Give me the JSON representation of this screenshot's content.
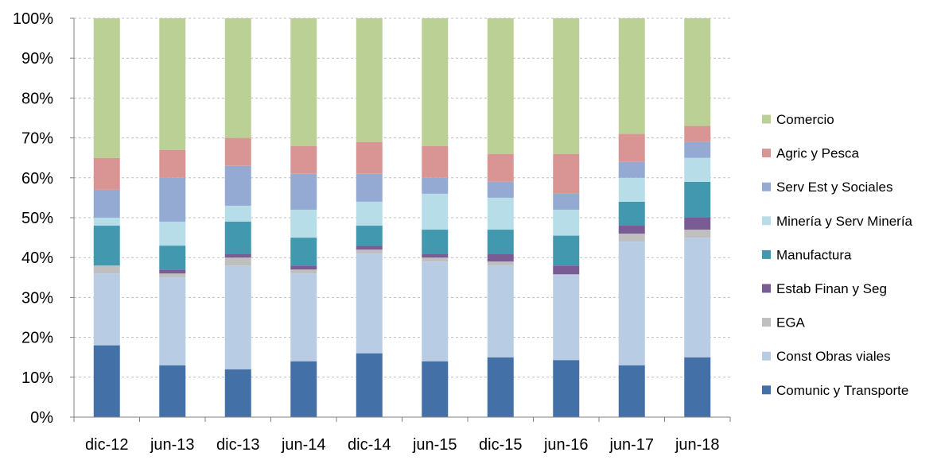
{
  "chart_data": {
    "type": "bar",
    "stacked": true,
    "normalized": true,
    "categories": [
      "dic-12",
      "jun-13",
      "dic-13",
      "jun-14",
      "dic-14",
      "jun-15",
      "dic-15",
      "jun-16",
      "jun-17",
      "jun-18"
    ],
    "ylim": [
      0,
      100
    ],
    "y_ticks": [
      "0%",
      "10%",
      "20%",
      "30%",
      "40%",
      "50%",
      "60%",
      "70%",
      "80%",
      "90%",
      "100%"
    ],
    "grid": true,
    "legend_position": "right",
    "series": [
      {
        "name": "Comunic y Transporte",
        "color": "#4470A8",
        "values": [
          18,
          13,
          12,
          14,
          16,
          14,
          15,
          14.3,
          13,
          15
        ]
      },
      {
        "name": "Const Obras viales",
        "color": "#B8CCE4",
        "values": [
          18,
          22,
          26,
          22,
          25,
          25,
          23,
          21.5,
          31,
          30
        ]
      },
      {
        "name": "EGA",
        "color": "#BFBFBF",
        "values": [
          2,
          1,
          2,
          1,
          1,
          1,
          1,
          0,
          2,
          2
        ]
      },
      {
        "name": "Estab Finan y Seg",
        "color": "#7A5C95",
        "values": [
          0,
          1,
          1,
          1,
          1,
          1,
          2,
          2.2,
          2,
          3
        ]
      },
      {
        "name": "Manufactura",
        "color": "#4198AF",
        "values": [
          10,
          6,
          8,
          7,
          5,
          6,
          6,
          7.5,
          6,
          9
        ]
      },
      {
        "name": "Minería y Serv Minería",
        "color": "#B7DEE8",
        "values": [
          2,
          6,
          4,
          7,
          6,
          9,
          8,
          6.5,
          6,
          6
        ]
      },
      {
        "name": "Serv Est y Sociales",
        "color": "#95AAD2",
        "values": [
          7,
          11,
          10,
          9,
          7,
          4,
          4,
          4,
          4,
          4
        ]
      },
      {
        "name": "Agric y Pesca",
        "color": "#D99594",
        "values": [
          8,
          7,
          7,
          7,
          8,
          8,
          7,
          10,
          7,
          4
        ]
      },
      {
        "name": "Comercio",
        "color": "#BBD094",
        "values": [
          35,
          33,
          30,
          32,
          31,
          32,
          34,
          34,
          29,
          27
        ]
      }
    ]
  }
}
